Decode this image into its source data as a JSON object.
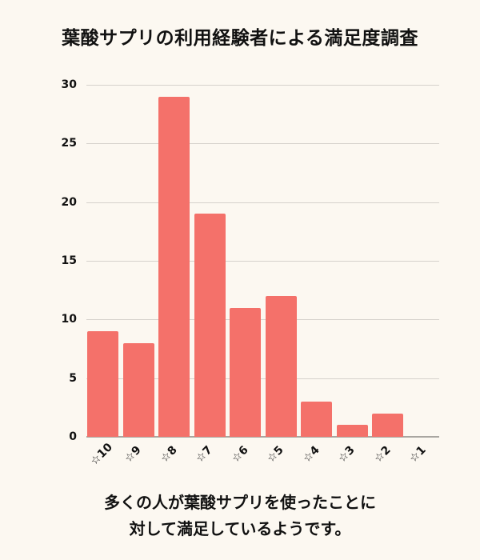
{
  "chart_data": {
    "type": "bar",
    "title": "葉酸サプリの利用経験者による満足度調査",
    "categories": [
      "☆10",
      "☆9",
      "☆8",
      "☆7",
      "☆6",
      "☆5",
      "☆4",
      "☆3",
      "☆2",
      "☆1"
    ],
    "values": [
      9,
      8,
      29,
      19,
      11,
      12,
      3,
      1,
      2,
      0
    ],
    "xlabel": "",
    "ylabel": "",
    "ylim": [
      0,
      30
    ],
    "yticks": [
      0,
      5,
      10,
      15,
      20,
      25,
      30
    ],
    "grid": true,
    "legend": null,
    "bar_color": "#f4716a"
  },
  "caption": {
    "line1": "多くの人が葉酸サプリを使ったことに",
    "line2": "対して満足しているようです。"
  }
}
